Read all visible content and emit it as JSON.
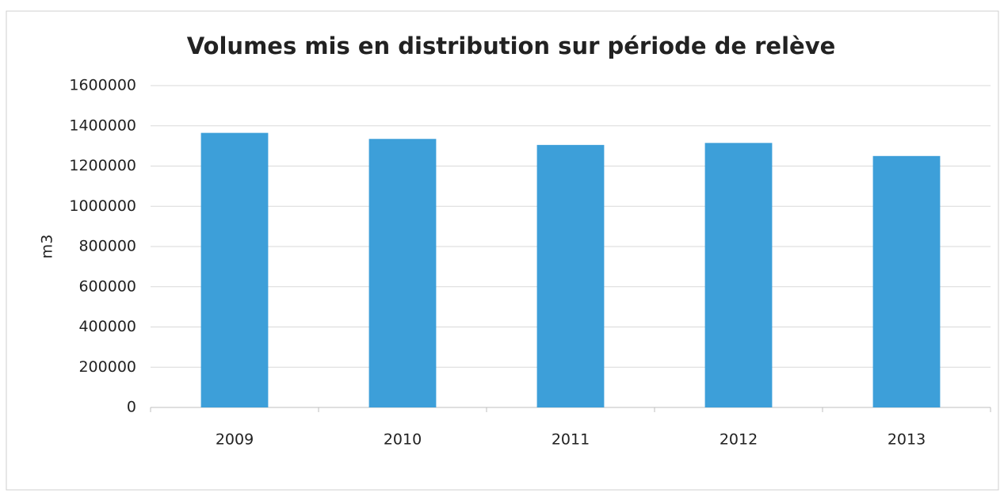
{
  "chart_data": {
    "type": "bar",
    "title": "Volumes mis en distribution sur période de relève",
    "y_label": "m3",
    "categories": [
      "2009",
      "2010",
      "2011",
      "2012",
      "2013"
    ],
    "values": [
      1365000,
      1335000,
      1305000,
      1315000,
      1250000
    ],
    "color": "#3d9fd9",
    "ylim": [
      0,
      1600000
    ],
    "yticks": [
      0,
      200000,
      400000,
      600000,
      800000,
      1000000,
      1200000,
      1400000,
      1600000
    ],
    "grid": true
  }
}
